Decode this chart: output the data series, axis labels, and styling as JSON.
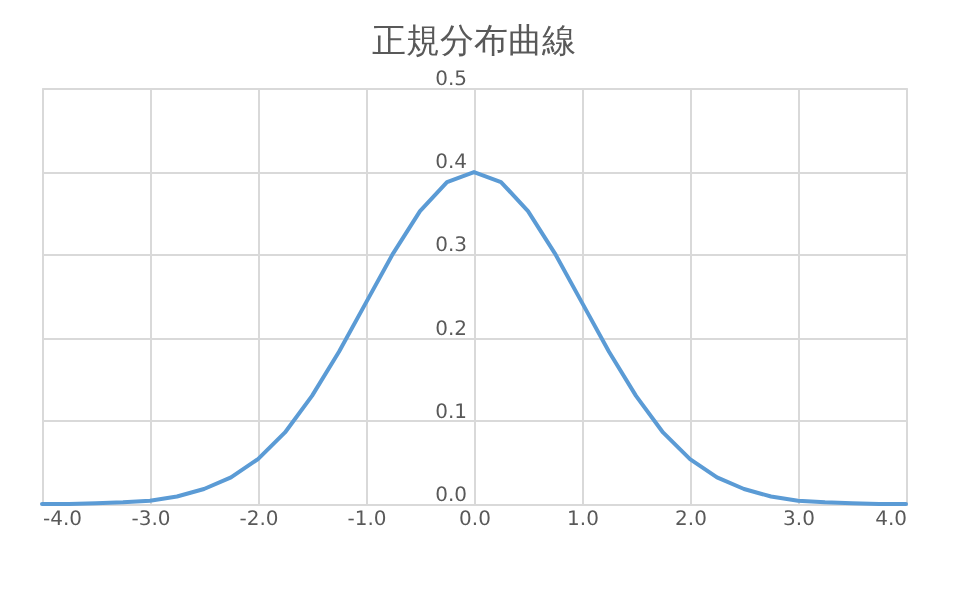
{
  "chart_data": {
    "type": "line",
    "title": "正規分布曲線",
    "x": [
      -4,
      -3.75,
      -3.5,
      -3.25,
      -3,
      -2.75,
      -2.5,
      -2.25,
      -2,
      -1.75,
      -1.5,
      -1.25,
      -1,
      -0.75,
      -0.5,
      -0.25,
      0,
      0.25,
      0.5,
      0.75,
      1,
      1.25,
      1.5,
      1.75,
      2,
      2.25,
      2.5,
      2.75,
      3,
      3.25,
      3.5,
      3.75,
      4
    ],
    "series": [
      {
        "color": "#5b9bd5",
        "values": [
          0.0,
          0.0,
          0.001,
          0.002,
          0.004,
          0.009,
          0.018,
          0.032,
          0.054,
          0.086,
          0.13,
          0.183,
          0.242,
          0.301,
          0.352,
          0.387,
          0.399,
          0.387,
          0.352,
          0.301,
          0.242,
          0.183,
          0.13,
          0.086,
          0.054,
          0.032,
          0.018,
          0.009,
          0.004,
          0.002,
          0.001,
          0.0,
          0.0
        ]
      }
    ],
    "xlim": [
      -4,
      4
    ],
    "xticks": [
      {
        "value": -4,
        "label": "-4.0"
      },
      {
        "value": -3,
        "label": "-3.0"
      },
      {
        "value": -2,
        "label": "-2.0"
      },
      {
        "value": -1,
        "label": "-1.0"
      },
      {
        "value": 0,
        "label": "0.0"
      },
      {
        "value": 1,
        "label": "1.0"
      },
      {
        "value": 2,
        "label": "2.0"
      },
      {
        "value": 3,
        "label": "3.0"
      },
      {
        "value": 4,
        "label": "4.0"
      }
    ],
    "ylim": [
      0,
      0.5
    ],
    "yticks": [
      {
        "value": 0,
        "label": "0.0"
      },
      0.1,
      0.2,
      0.3,
      0.4,
      0.5
    ],
    "grid": true,
    "marker": "none",
    "line_style": "solid"
  }
}
